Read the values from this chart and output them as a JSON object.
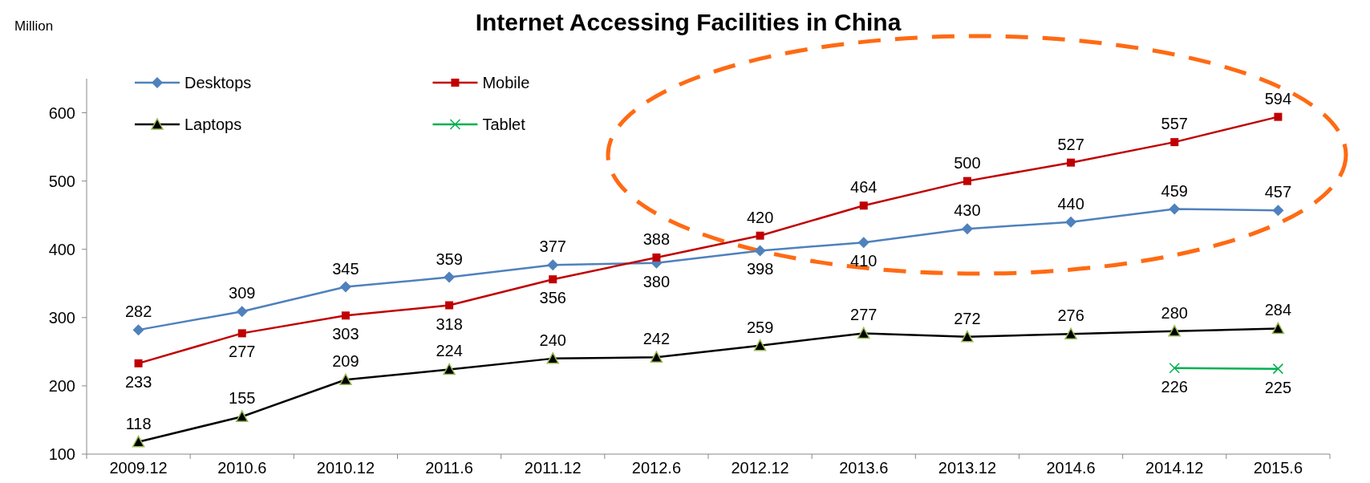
{
  "chart_data": {
    "type": "line",
    "title": "Internet Accessing Facilities in China",
    "ylabel": "Million",
    "categories": [
      "2009.12",
      "2010.6",
      "2010.12",
      "2011.6",
      "2011.12",
      "2012.6",
      "2012.12",
      "2013.6",
      "2013.12",
      "2014.6",
      "2014.12",
      "2015.6"
    ],
    "series": [
      {
        "name": "Desktops",
        "color": "#4f81bd",
        "marker": "diamond",
        "values": [
          282,
          309,
          345,
          359,
          377,
          380,
          398,
          410,
          430,
          440,
          459,
          457
        ]
      },
      {
        "name": "Mobile",
        "color": "#c00000",
        "marker": "square",
        "values": [
          233,
          277,
          303,
          318,
          356,
          388,
          420,
          464,
          500,
          527,
          557,
          594
        ]
      },
      {
        "name": "Laptops",
        "color": "#000000",
        "marker": "triangle",
        "values": [
          118,
          155,
          209,
          224,
          240,
          242,
          259,
          277,
          272,
          276,
          280,
          284
        ]
      },
      {
        "name": "Tablet",
        "color": "#00b050",
        "marker": "cross",
        "values": [
          null,
          null,
          null,
          null,
          null,
          null,
          null,
          null,
          null,
          null,
          226,
          225
        ]
      }
    ],
    "ylim": [
      100,
      650
    ],
    "yticks": [
      100,
      200,
      300,
      400,
      500,
      600
    ],
    "grid": false,
    "legend": "top left",
    "data_labels": true,
    "line_style": "solid"
  }
}
